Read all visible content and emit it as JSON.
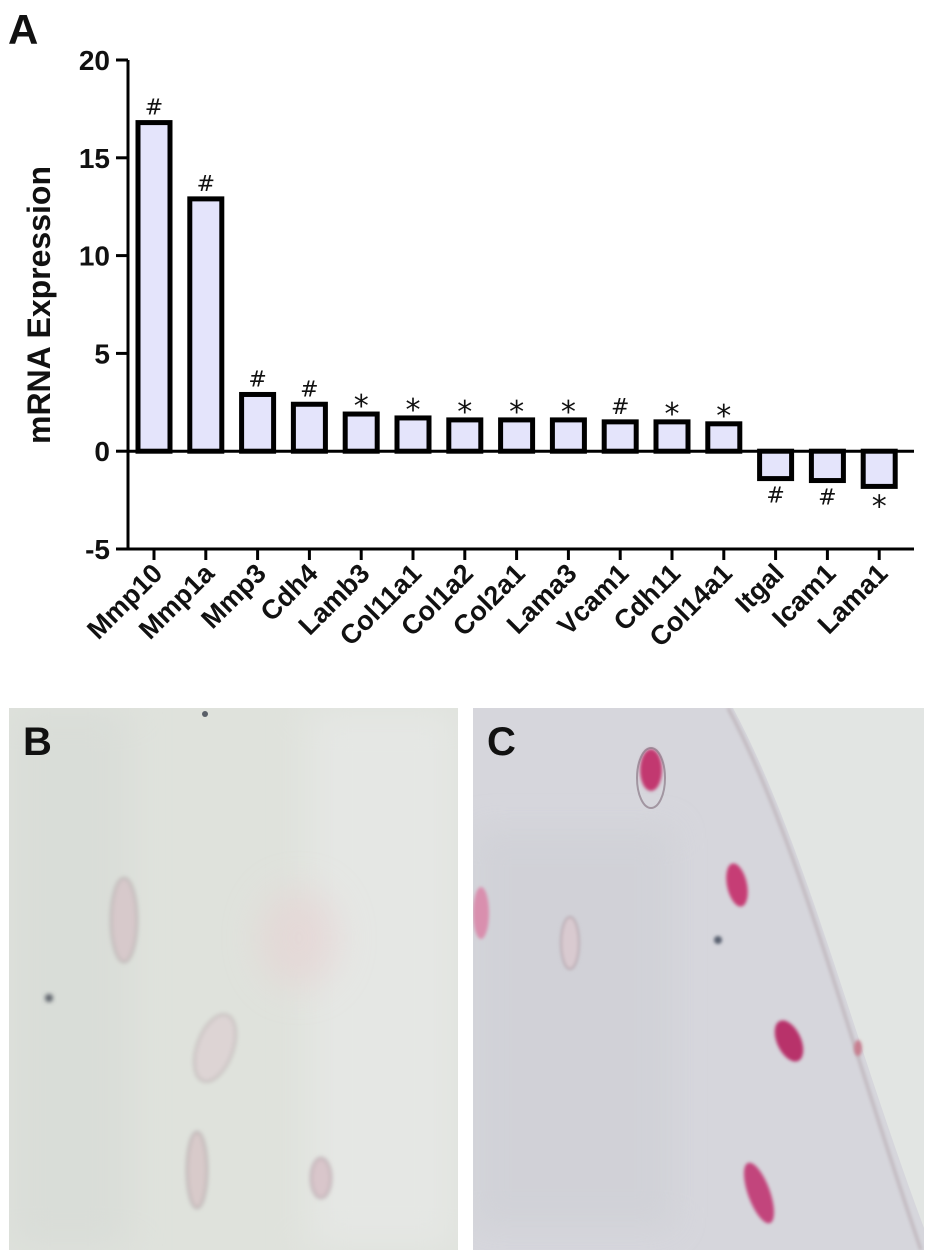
{
  "chart_data": {
    "type": "bar",
    "panel_label": "A",
    "title": "",
    "xlabel": "",
    "ylabel": "mRNA Expression",
    "ylim": [
      -5,
      20
    ],
    "yticks": [
      -5,
      0,
      5,
      10,
      15,
      20
    ],
    "grid": false,
    "bar_fill": "#e4e4fb",
    "bar_stroke": "#000000",
    "categories": [
      "Mmp10",
      "Mmp1a",
      "Mmp3",
      "Cdh4",
      "Lamb3",
      "Col11a1",
      "Col1a2",
      "Col2a1",
      "Lama3",
      "Vcam1",
      "Cdh11",
      "Col14a1",
      "Itgal",
      "Icam1",
      "Lama1"
    ],
    "values": [
      16.8,
      12.9,
      2.9,
      2.4,
      1.9,
      1.7,
      1.6,
      1.6,
      1.6,
      1.5,
      1.5,
      1.4,
      -1.4,
      -1.5,
      -1.8
    ],
    "significance": [
      "#",
      "#",
      "#",
      "#",
      "*",
      "*",
      "*",
      "*",
      "*",
      "#",
      "*",
      "*",
      "#",
      "#",
      "*"
    ]
  },
  "images": [
    {
      "label": "B"
    },
    {
      "label": "C"
    }
  ]
}
